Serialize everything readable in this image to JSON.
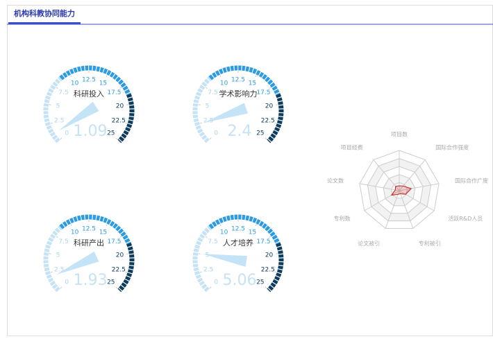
{
  "header": {
    "title": "机构科教协同能力"
  },
  "gauges": [
    {
      "name": "科研投入",
      "value": 1.09,
      "lim": [
        0,
        25
      ],
      "ticks": [
        0,
        2.5,
        5,
        7.5,
        10,
        12.5,
        15,
        17.5,
        20,
        22.5,
        25
      ]
    },
    {
      "name": "学术影响力",
      "value": 2.4,
      "lim": [
        0,
        25
      ],
      "ticks": [
        0,
        2.5,
        5,
        7.5,
        10,
        12.5,
        15,
        17.5,
        20,
        22.5,
        25
      ]
    },
    {
      "name": "科研产出",
      "value": 1.93,
      "lim": [
        0,
        25
      ],
      "ticks": [
        0,
        2.5,
        5,
        7.5,
        10,
        12.5,
        15,
        17.5,
        20,
        22.5,
        25
      ]
    },
    {
      "name": "人才培养",
      "value": 5.06,
      "lim": [
        0,
        25
      ],
      "ticks": [
        0,
        2.5,
        5,
        7.5,
        10,
        12.5,
        15,
        17.5,
        20,
        22.5,
        25
      ]
    }
  ],
  "gauge_bands": [
    {
      "from": 0,
      "to": 8.75,
      "color": "#c6e2f5"
    },
    {
      "from": 8.75,
      "to": 18.75,
      "color": "#2d9be3"
    },
    {
      "from": 18.75,
      "to": 25,
      "color": "#0d3c61"
    }
  ],
  "radar": {
    "type": "radar",
    "indicators": [
      "项目数",
      "国际合作强度",
      "国际合作广度",
      "活跃R&D人员",
      "专利被引",
      "论文被引",
      "专利数",
      "论文数",
      "项目经费"
    ],
    "values": [
      0.12,
      0.15,
      0.3,
      0.18,
      0.08,
      0.1,
      0.22,
      0.1,
      0.14
    ],
    "rlim": [
      0,
      1
    ],
    "color": "#c23531"
  }
}
